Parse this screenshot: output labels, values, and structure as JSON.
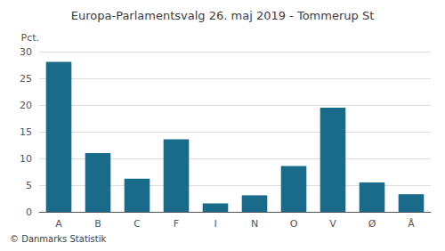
{
  "chart_data": {
    "type": "bar",
    "title": "Europa-Parlamentsvalg 26. maj 2019 - Tommerup St",
    "ylabel": "Pct.",
    "annotations": [
      "© Danmarks Statistik"
    ],
    "categories": [
      "A",
      "B",
      "C",
      "F",
      "I",
      "N",
      "O",
      "V",
      "Ø",
      "Å"
    ],
    "values": [
      28.1,
      11.0,
      6.2,
      13.6,
      1.6,
      3.1,
      8.6,
      19.5,
      5.5,
      3.3
    ],
    "color": "#1a6b8a",
    "ylim": [
      0,
      30
    ],
    "yticks": [
      0,
      5,
      10,
      15,
      20,
      25,
      30
    ],
    "grid": true
  }
}
